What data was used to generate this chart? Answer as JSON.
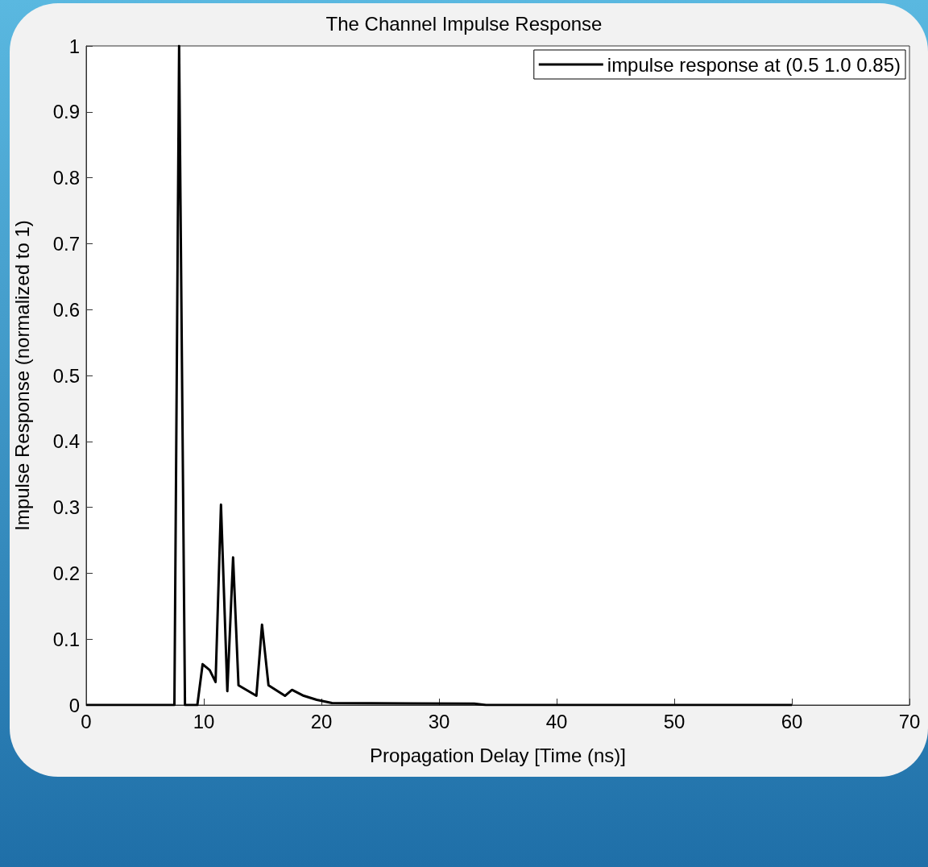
{
  "chart_data": {
    "type": "line",
    "title": "The Channel Impulse Response",
    "xlabel": "Propagation Delay [Time (ns)]",
    "ylabel": "Impulse Response (normalized to 1)",
    "series": [
      {
        "name": "impulse response at (0.5 1.0 0.85)",
        "color": "#000000",
        "x": [
          0,
          7.5,
          7.9,
          8.4,
          9.45,
          9.9,
          10.5,
          11.0,
          11.46,
          12.0,
          12.49,
          12.95,
          14.47,
          14.95,
          15.5,
          16.9,
          17.5,
          18.5,
          19.6,
          20.9,
          33,
          34,
          60
        ],
        "values": [
          0,
          0,
          1,
          0,
          0,
          0.062,
          0.053,
          0.035,
          0.304,
          0.021,
          0.224,
          0.03,
          0.014,
          0.122,
          0.03,
          0.014,
          0.023,
          0.014,
          0.008,
          0.003,
          0.002,
          0,
          0
        ]
      }
    ],
    "xlim": [
      0,
      70
    ],
    "xticks": [
      0,
      10,
      20,
      30,
      40,
      50,
      60,
      70
    ],
    "ylim": [
      0,
      1
    ],
    "yticks": [
      0,
      0.1,
      0.2,
      0.3,
      0.4,
      0.5,
      0.6,
      0.7,
      0.8,
      0.9,
      1
    ],
    "grid": false,
    "legend": "top right",
    "marker": "none",
    "line_style": "solid"
  }
}
